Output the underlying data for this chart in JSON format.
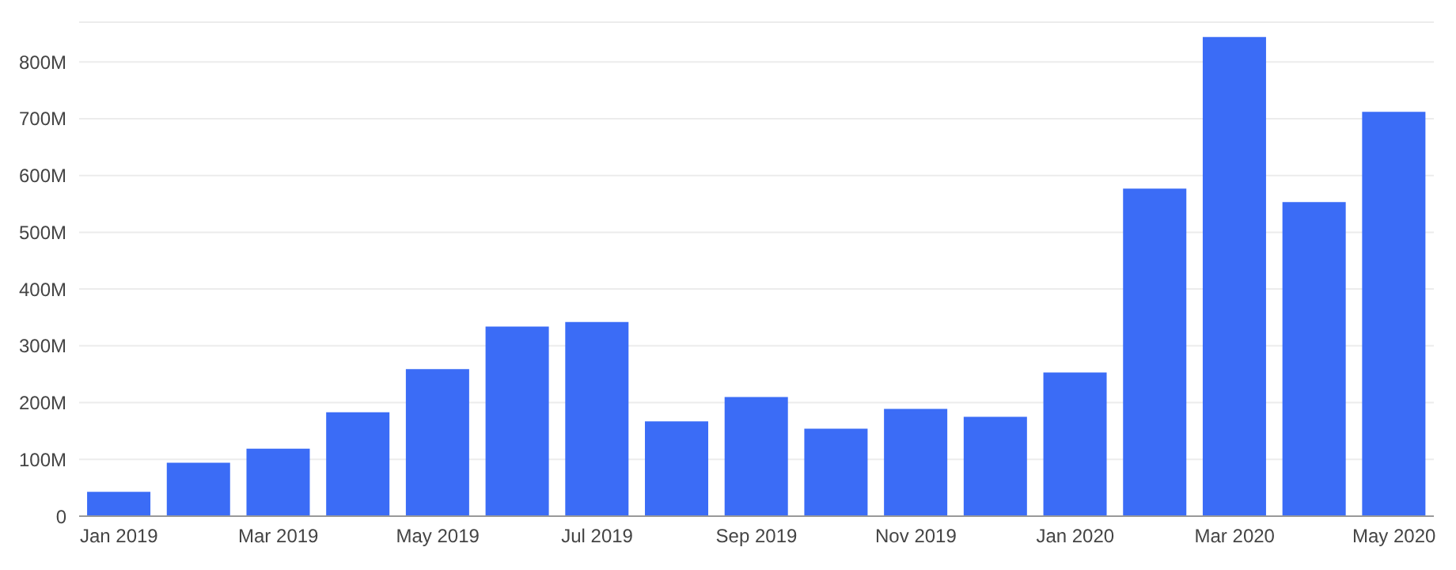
{
  "chart_data": {
    "type": "bar",
    "categories": [
      "Jan 2019",
      null,
      "Mar 2019",
      null,
      "May 2019",
      null,
      "Jul 2019",
      null,
      "Sep 2019",
      null,
      "Nov 2019",
      null,
      "Jan 2020",
      null,
      "Mar 2020",
      null,
      "May 2020"
    ],
    "values": [
      43000000,
      94000000,
      119000000,
      183000000,
      259000000,
      334000000,
      342000000,
      167000000,
      210000000,
      154000000,
      189000000,
      175000000,
      253000000,
      577000000,
      844000000,
      553000000,
      712000000
    ],
    "color": "#3b6cf6",
    "ylim": [
      0,
      870000000
    ],
    "yticks": [
      0,
      {
        "value": 100000000,
        "label": "100M"
      },
      {
        "value": 200000000,
        "label": "200M"
      },
      {
        "value": 300000000,
        "label": "300M"
      },
      {
        "value": 400000000,
        "label": "400M"
      },
      {
        "value": 500000000,
        "label": "500M"
      },
      {
        "value": 600000000,
        "label": "600M"
      },
      {
        "value": 700000000,
        "label": "700M"
      },
      {
        "value": 800000000,
        "label": "800M"
      }
    ],
    "grid": "y"
  }
}
